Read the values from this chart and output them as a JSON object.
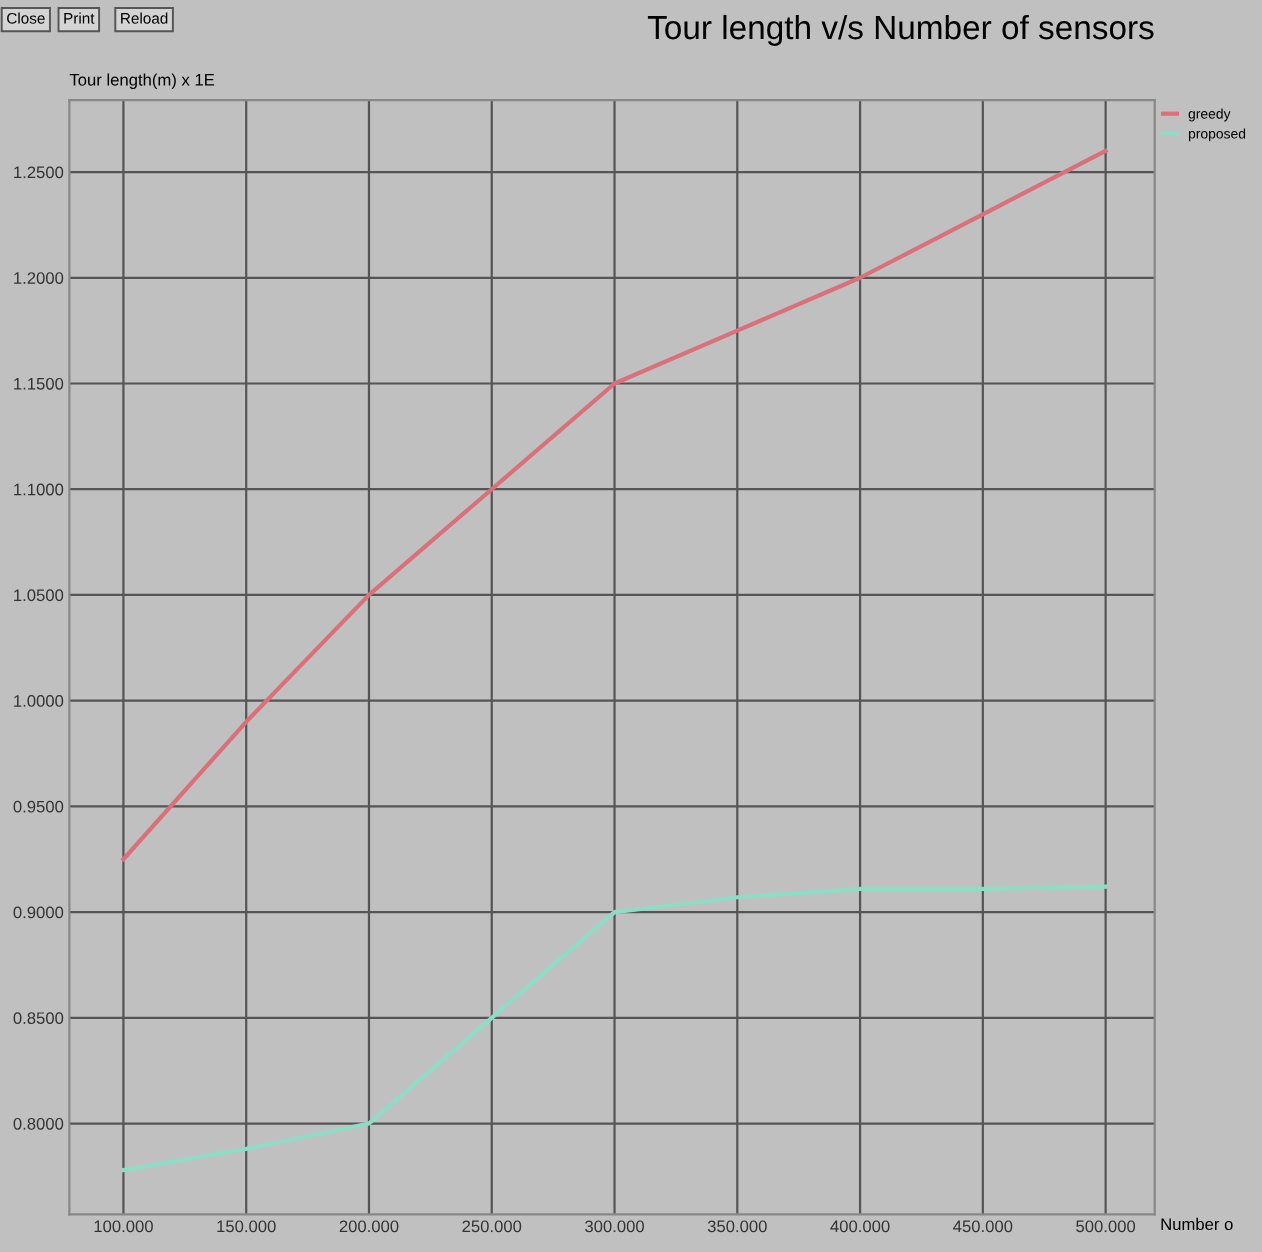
{
  "chart_data": {
    "type": "line",
    "title": "Tour length v/s Number of sensors",
    "ylabel": "Tour length(m) x 1E",
    "xlabel": "Number o",
    "x": [
      100,
      150,
      200,
      250,
      300,
      350,
      400,
      450,
      500
    ],
    "series": [
      {
        "name": "greedy",
        "color": "#d9707a",
        "values": [
          0.925,
          0.99,
          1.05,
          1.1,
          1.15,
          1.175,
          1.2,
          1.23,
          1.26
        ]
      },
      {
        "name": "proposed",
        "color": "#8fdcc4",
        "values": [
          0.778,
          0.788,
          0.8,
          0.85,
          0.9,
          0.907,
          0.911,
          0.911,
          0.912
        ]
      }
    ],
    "xlim": [
      78,
      520
    ],
    "ylim": [
      0.757,
      1.284
    ],
    "xticks": [
      {
        "value": 100,
        "label": "100.000"
      },
      {
        "value": 150,
        "label": "150.000"
      },
      {
        "value": 200,
        "label": "200.000"
      },
      {
        "value": 250,
        "label": "250.000"
      },
      {
        "value": 300,
        "label": "300.000"
      },
      {
        "value": 350,
        "label": "350.000"
      },
      {
        "value": 400,
        "label": "400.000"
      },
      {
        "value": 450,
        "label": "450.000"
      },
      {
        "value": 500,
        "label": "500.000"
      }
    ],
    "yticks": [
      {
        "value": 0.8,
        "label": "0.8000"
      },
      {
        "value": 0.85,
        "label": "0.8500"
      },
      {
        "value": 0.9,
        "label": "0.9000"
      },
      {
        "value": 0.95,
        "label": "0.9500"
      },
      {
        "value": 1.0,
        "label": "1.0000"
      },
      {
        "value": 1.05,
        "label": "1.0500"
      },
      {
        "value": 1.1,
        "label": "1.1000"
      },
      {
        "value": 1.15,
        "label": "1.1500"
      },
      {
        "value": 1.2,
        "label": "1.2000"
      },
      {
        "value": 1.25,
        "label": "1.2500"
      }
    ],
    "grid": true,
    "legend": "top right",
    "marker": "none",
    "line_style": "solid",
    "annotations": [
      "Close",
      "Print",
      "Reload"
    ]
  }
}
